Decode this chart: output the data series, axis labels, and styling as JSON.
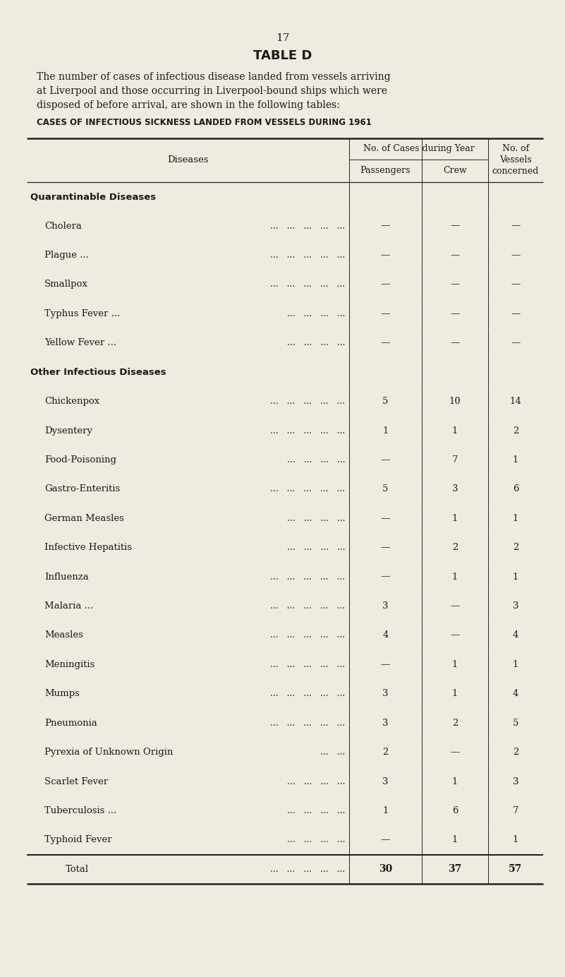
{
  "page_number": "17",
  "title": "TABLE D",
  "desc_line1": "The number of cases of infectious disease landed from vessels arriving",
  "desc_line2": "at Liverpool and those occurring in Liverpool-bound ships which were",
  "desc_line3": "disposed of before arrival, are shown in the following tables:",
  "subtitle": "CASES OF INFECTIOUS SICKNESS LANDED FROM VESSELS DURING 1961",
  "bg_color": "#f0ebe0",
  "section1_header": "Quarantinable Diseases",
  "section2_header": "Other Infectious Diseases",
  "rows": [
    {
      "disease": "Cholera",
      "dots5": true,
      "passengers": "—",
      "crew": "—",
      "vessels": "—",
      "section": 1
    },
    {
      "disease": "Plague ...",
      "dots4": true,
      "passengers": "—",
      "crew": "—",
      "vessels": "—",
      "section": 1
    },
    {
      "disease": "Smallpox",
      "dots5": true,
      "passengers": "—",
      "crew": "—",
      "vessels": "—",
      "section": 1
    },
    {
      "disease": "Typhus Fever ...",
      "dots4": true,
      "passengers": "—",
      "crew": "—",
      "vessels": "—",
      "section": 1
    },
    {
      "disease": "Yellow Fever ...",
      "dots4": true,
      "passengers": "—",
      "crew": "—",
      "vessels": "—",
      "section": 1
    },
    {
      "disease": "Chickenpox",
      "dots5": true,
      "passengers": "5",
      "crew": "10",
      "vessels": "14",
      "section": 2
    },
    {
      "disease": "Dysentery",
      "dots5": true,
      "passengers": "1",
      "crew": "1",
      "vessels": "2",
      "section": 2
    },
    {
      "disease": "Food-Poisoning",
      "dots4": true,
      "passengers": "—",
      "crew": "7",
      "vessels": "1",
      "section": 2
    },
    {
      "disease": "Gastro-Enteritis",
      "dots5": true,
      "passengers": "5",
      "crew": "3",
      "vessels": "6",
      "section": 2
    },
    {
      "disease": "German Measles",
      "dots4": true,
      "passengers": "—",
      "crew": "1",
      "vessels": "1",
      "section": 2
    },
    {
      "disease": "Infective Hepatitis",
      "dots4": true,
      "passengers": "—",
      "crew": "2",
      "vessels": "2",
      "section": 2
    },
    {
      "disease": "Influenza",
      "dots5": true,
      "passengers": "—",
      "crew": "1",
      "vessels": "1",
      "section": 2
    },
    {
      "disease": "Malaria ...",
      "dots5": true,
      "passengers": "3",
      "crew": "—",
      "vessels": "3",
      "section": 2
    },
    {
      "disease": "Measles",
      "dots5": true,
      "passengers": "4",
      "crew": "—",
      "vessels": "4",
      "section": 2
    },
    {
      "disease": "Meningitis",
      "dots5": true,
      "passengers": "—",
      "crew": "1",
      "vessels": "1",
      "section": 2
    },
    {
      "disease": "Mumps",
      "dots5": true,
      "passengers": "3",
      "crew": "1",
      "vessels": "4",
      "section": 2
    },
    {
      "disease": "Pneumonia",
      "dots5": true,
      "passengers": "3",
      "crew": "2",
      "vessels": "5",
      "section": 2
    },
    {
      "disease": "Pyrexia of Unknown Origin",
      "dots3": true,
      "passengers": "2",
      "crew": "—",
      "vessels": "2",
      "section": 2
    },
    {
      "disease": "Scarlet Fever",
      "dots4": true,
      "passengers": "3",
      "crew": "1",
      "vessels": "3",
      "section": 2
    },
    {
      "disease": "Tuberculosis ...",
      "dots4": true,
      "passengers": "1",
      "crew": "6",
      "vessels": "7",
      "section": 2
    },
    {
      "disease": "Typhoid Fever",
      "dots4": true,
      "passengers": "—",
      "crew": "1",
      "vessels": "1",
      "section": 2
    }
  ],
  "total_label": "Total",
  "total_passengers": "30",
  "total_crew": "37",
  "total_vessels": "57",
  "dot_patterns": {
    "5": "...  ...  ...  ...  ...",
    "4": "...  ...  ...  ...",
    "3": "...  ..."
  }
}
